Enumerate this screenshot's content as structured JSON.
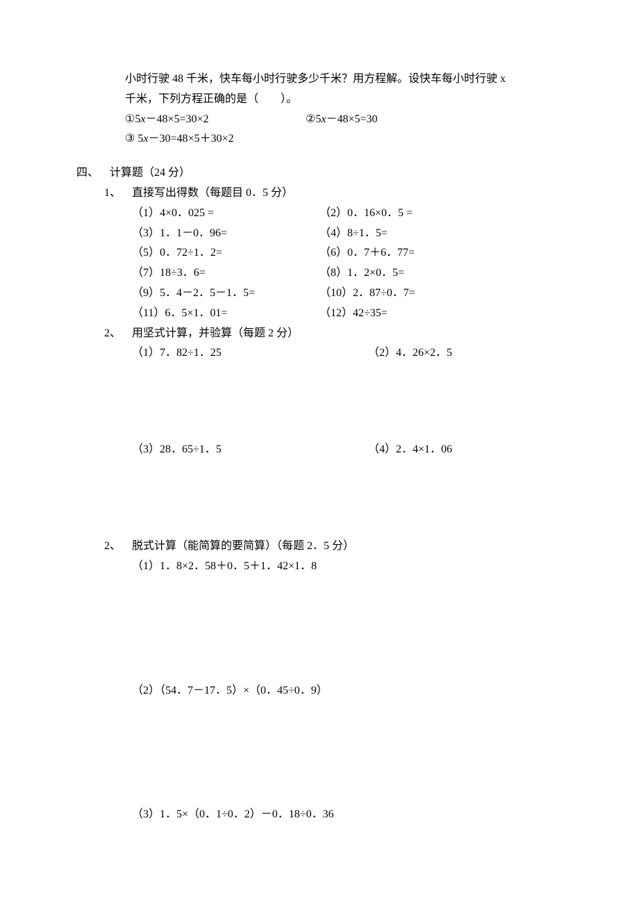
{
  "problem_top": {
    "line1": "小时行驶 48 千米，快车每小时行驶多少千米？用方程解。设快车每小时行驶 x",
    "line2": "千米，下列方程正确的是（　　）。",
    "opt1": "①5x－48×5=30×2",
    "opt2": "②5x－48×5=30",
    "opt3": "③ 5x－30=48×5＋30×2"
  },
  "section4": {
    "num": "四、",
    "title": "计算题（24 分）",
    "q1": {
      "num": "1、",
      "title": "直接写出得数（每题目 0．5 分）",
      "items": [
        {
          "l": "（1）4×0．025 =",
          "r": "（2）0．16×0．5 ="
        },
        {
          "l": "（3）1．1－0．96=",
          "r": "（4）8÷1．5="
        },
        {
          "l": "（5）0．72÷1．2=",
          "r": "（6）0．7＋6．77="
        },
        {
          "l": "（7）18÷3．6=",
          "r": "（8）1．2×0．5="
        },
        {
          "l": "（9）5．4－2．5－1．5=",
          "r": "（10）2．87÷0．7="
        },
        {
          "l": "（11）6．5×1．01=",
          "r": "（12）42÷35="
        }
      ]
    },
    "q2": {
      "num": "2、",
      "title": "用坚式计算，并验算（每题 2 分）",
      "items": [
        {
          "l": "（1）7．82÷1．25",
          "r": "（2）4．26×2．5"
        },
        {
          "l": "（3）28．65÷1．5",
          "r": "（4）2．4×1．06"
        }
      ]
    },
    "q3": {
      "num": "2、",
      "title": "脱式计算（能简算的要简算）（每题 2．5 分）",
      "items": [
        "（1）1．8×2．58＋0．5＋1．42×1．8",
        "（2）（54．7－17．5）×（0．45÷0．9）",
        "（3）1．5×（0．1÷0．2）－0．18÷0．36"
      ]
    }
  }
}
